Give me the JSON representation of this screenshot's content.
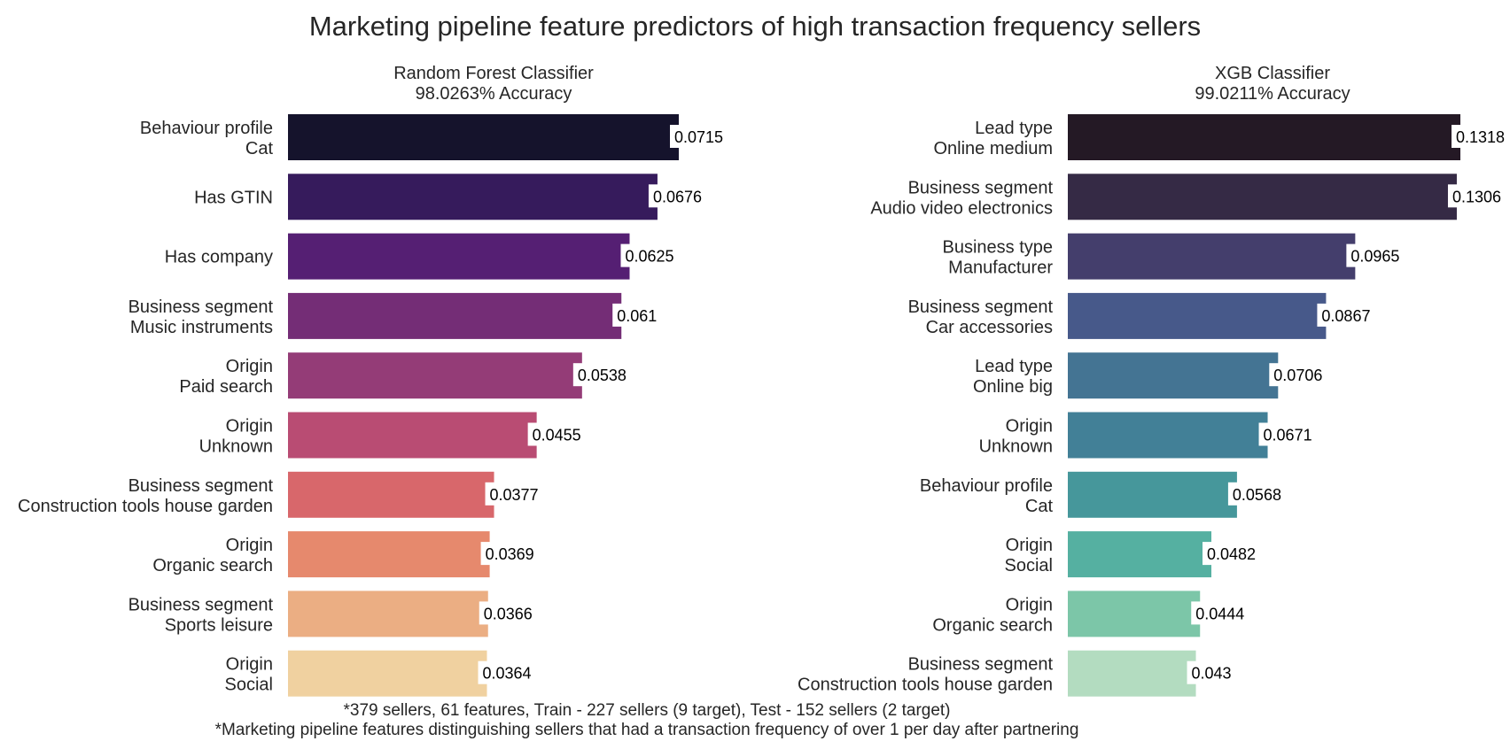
{
  "title": "Marketing pipeline feature predictors of high transaction frequency sellers",
  "footnotes": [
    "*379 sellers, 61 features, Train - 227 sellers (9 target), Test - 152 sellers (2 target)",
    "*Marketing pipeline features distinguishing sellers that had a transaction frequency of over 1 per day after partnering"
  ],
  "chart_data": [
    {
      "type": "bar",
      "orientation": "horizontal",
      "subtitle": [
        "Random Forest Classifier",
        "98.0263% Accuracy"
      ],
      "categories": [
        [
          "Behaviour profile",
          "Cat"
        ],
        [
          "Has GTIN"
        ],
        [
          "Has company"
        ],
        [
          "Business segment",
          "Music instruments"
        ],
        [
          "Origin",
          "Paid search"
        ],
        [
          "Origin",
          "Unknown"
        ],
        [
          "Business segment",
          "Construction tools house garden"
        ],
        [
          "Origin",
          "Organic search"
        ],
        [
          "Business segment",
          "Sports leisure"
        ],
        [
          "Origin",
          "Social"
        ]
      ],
      "values": [
        0.0715,
        0.0676,
        0.0625,
        0.061,
        0.0538,
        0.0455,
        0.0377,
        0.0369,
        0.0366,
        0.0364
      ],
      "labels": [
        "0.0715",
        "0.0676",
        "0.0625",
        "0.061",
        "0.0538",
        "0.0455",
        "0.0377",
        "0.0369",
        "0.0366",
        "0.0364"
      ],
      "xlim": [
        0,
        0.1
      ],
      "colors": [
        "#15132c",
        "#361b5c",
        "#551f73",
        "#742d76",
        "#943c77",
        "#b94c73",
        "#d8676b",
        "#e6896d",
        "#ebae83",
        "#f0d1a0"
      ]
    },
    {
      "type": "bar",
      "orientation": "horizontal",
      "subtitle": [
        "XGB Classifier",
        "99.0211% Accuracy"
      ],
      "categories": [
        [
          "Lead type",
          "Online medium"
        ],
        [
          "Business segment",
          "Audio video electronics"
        ],
        [
          "Business type",
          "Manufacturer"
        ],
        [
          "Business segment",
          "Car accessories"
        ],
        [
          "Lead type",
          "Online big"
        ],
        [
          "Origin",
          "Unknown"
        ],
        [
          "Behaviour profile",
          "Cat"
        ],
        [
          "Origin",
          "Social"
        ],
        [
          "Origin",
          "Organic search"
        ],
        [
          "Business segment",
          "Construction tools house garden"
        ]
      ],
      "values": [
        0.1318,
        0.1306,
        0.0965,
        0.0867,
        0.0706,
        0.0671,
        0.0568,
        0.0482,
        0.0444,
        0.043
      ],
      "labels": [
        "0.1318",
        "0.1306",
        "0.0965",
        "0.0867",
        "0.0706",
        "0.0671",
        "0.0568",
        "0.0482",
        "0.0444",
        "0.043"
      ],
      "xlim": [
        0,
        0.1318
      ],
      "colors": [
        "#241925",
        "#352a45",
        "#443e6c",
        "#47598a",
        "#447493",
        "#428097",
        "#46979b",
        "#55b0a1",
        "#7cc6a8",
        "#b3dcc0"
      ]
    }
  ]
}
